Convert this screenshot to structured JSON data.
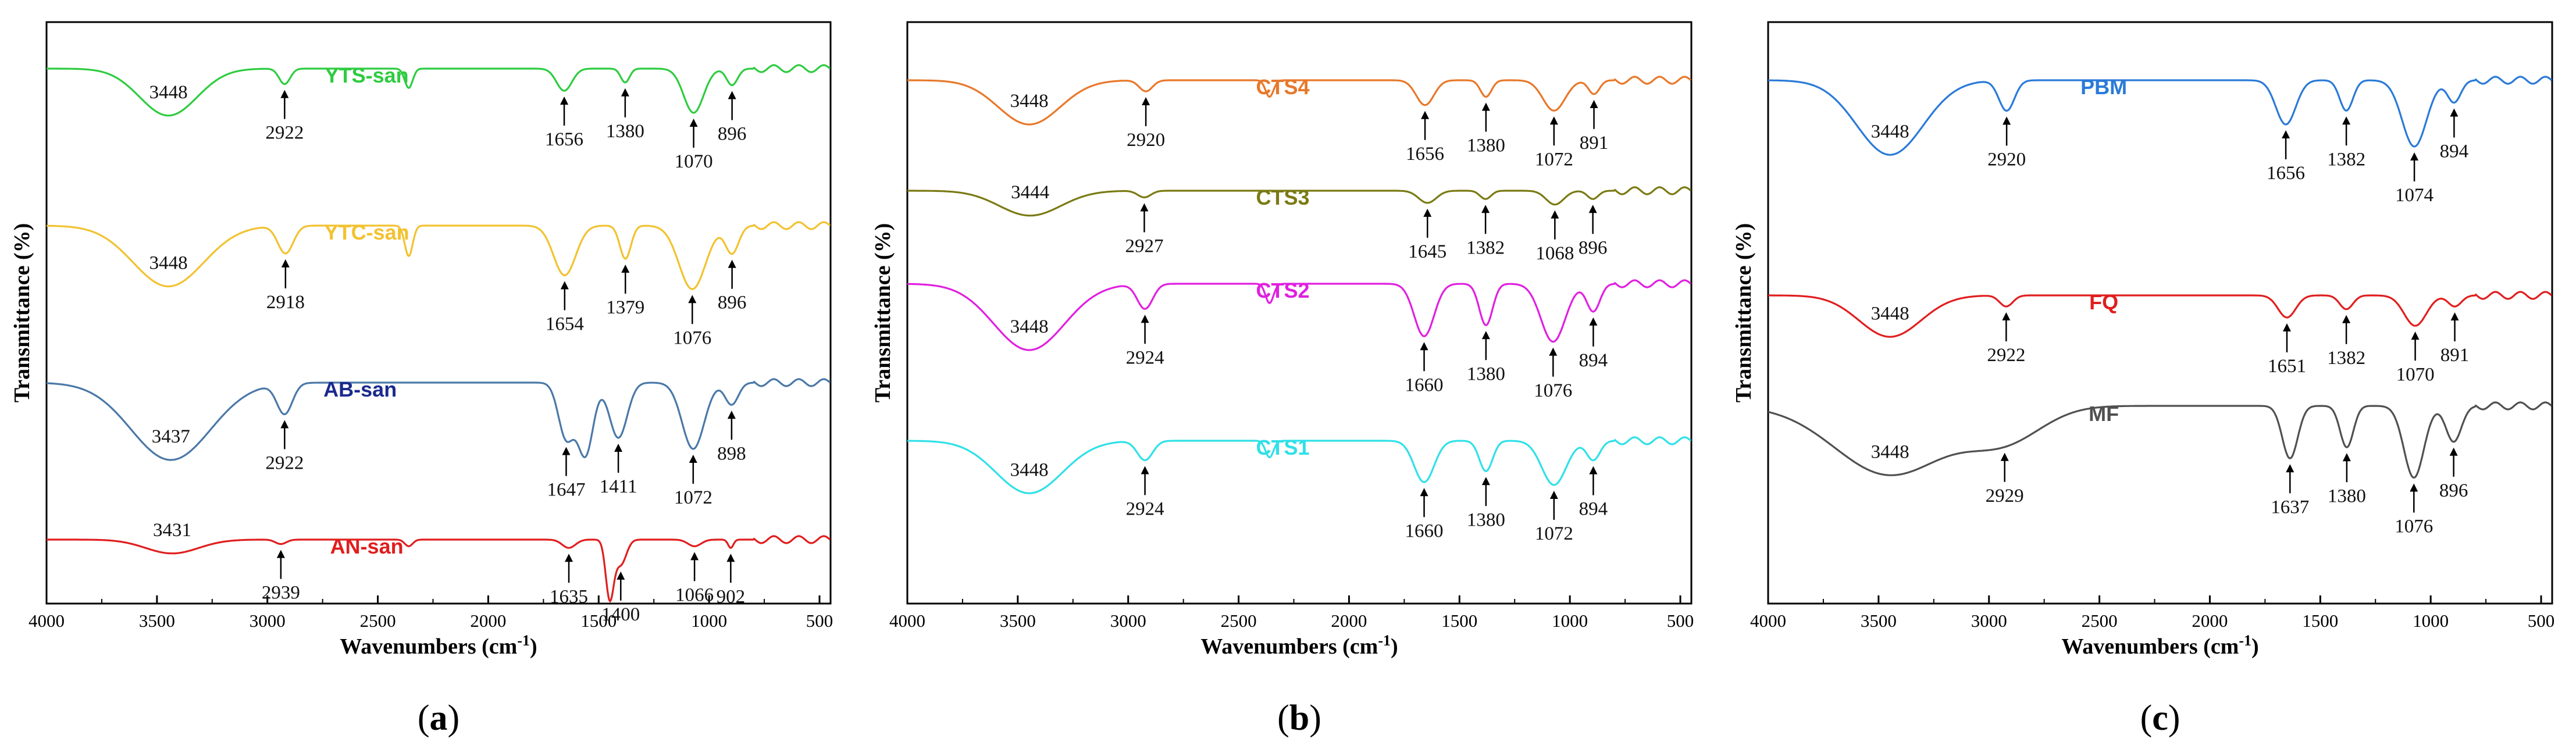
{
  "colors": {
    "green": "#2ecc40",
    "yellow": "#f2c230",
    "steel": "#4a78a8",
    "red": "#e01e1e",
    "navy": "#1a2a8c",
    "orange": "#e8782a",
    "olive": "#7a7a14",
    "magenta": "#e020e0",
    "cyan": "#30e0e8",
    "blue": "#2a7ad8",
    "gray": "#505050"
  },
  "chart_data": [
    {
      "panel": "a",
      "type": "line",
      "caption": {
        "open": "(",
        "letter": "a",
        "close": ")"
      },
      "xlabel": "Wavenumbers (cm",
      "xlabel_sup": "-1",
      "xlabel_close": ")",
      "ylabel": "Transmittance (%)",
      "xlim": [
        4000,
        450
      ],
      "xticks": [
        4000,
        3500,
        3000,
        2500,
        2000,
        1500,
        1000,
        500
      ],
      "series": [
        {
          "name": "YTS-san",
          "color": "green",
          "label_x": 2550,
          "baseline": 0.92,
          "shape": "flat",
          "peaks": [
            [
              3448,
              0.85,
              130,
              true
            ],
            [
              2922,
              0.28,
              25,
              true
            ],
            [
              2360,
              0.35,
              18,
              false
            ],
            [
              1656,
              0.4,
              35,
              true
            ],
            [
              1380,
              0.25,
              20,
              true
            ],
            [
              1070,
              0.8,
              45,
              true
            ],
            [
              896,
              0.3,
              25,
              true
            ]
          ]
        },
        {
          "name": "YTC-san",
          "color": "yellow",
          "label_x": 2550,
          "baseline": 0.65,
          "shape": "flat",
          "peaks": [
            [
              3448,
              1.1,
              160,
              true
            ],
            [
              2918,
              0.5,
              35,
              true
            ],
            [
              2360,
              0.55,
              18,
              false
            ],
            [
              1654,
              0.9,
              50,
              true
            ],
            [
              1379,
              0.6,
              25,
              true
            ],
            [
              1076,
              1.15,
              60,
              true
            ],
            [
              896,
              0.5,
              30,
              true
            ]
          ]
        },
        {
          "name": "AB-san",
          "color": "steel",
          "label_x": 2580,
          "label_color": "navy",
          "baseline": 0.38,
          "shape": "flat",
          "peaks": [
            [
              3437,
              1.4,
              180,
              true
            ],
            [
              2922,
              0.55,
              35,
              true
            ],
            [
              1647,
              1.0,
              35,
              true
            ],
            [
              1560,
              1.3,
              35,
              false
            ],
            [
              1411,
              1.0,
              40,
              true
            ],
            [
              1072,
              1.2,
              50,
              true
            ],
            [
              898,
              0.4,
              30,
              true
            ]
          ]
        },
        {
          "name": "AN-san",
          "color": "red",
          "label_x": 2550,
          "baseline": 0.11,
          "shape": "flat",
          "peaks": [
            [
              3431,
              0.25,
              120,
              true
            ],
            [
              2939,
              0.08,
              25,
              true
            ],
            [
              2360,
              0.12,
              18,
              false
            ],
            [
              1635,
              0.15,
              30,
              true
            ],
            [
              1450,
              1.05,
              18,
              false
            ],
            [
              1400,
              0.45,
              25,
              true
            ],
            [
              1066,
              0.12,
              30,
              true
            ],
            [
              902,
              0.15,
              12,
              true
            ]
          ]
        }
      ],
      "annotations": {
        "YTS-san": [
          "3448",
          "2922",
          "1656",
          "1380",
          "1070",
          "896"
        ],
        "YTC-san": [
          "3448",
          "2918",
          "1654",
          "1379",
          "1076",
          "896"
        ],
        "AB-san": [
          "3437",
          "2922",
          "1647",
          "1411",
          "1072",
          "898"
        ],
        "AN-san": [
          "3431",
          "2939",
          "1635",
          "1400",
          "1066",
          "902"
        ]
      }
    },
    {
      "panel": "b",
      "type": "line",
      "caption": {
        "open": "(",
        "letter": "b",
        "close": ")"
      },
      "xlabel": "Wavenumbers (cm",
      "xlabel_sup": "-1",
      "xlabel_close": ")",
      "ylabel": "Transmittance (%)",
      "xlim": [
        4000,
        450
      ],
      "xticks": [
        4000,
        3500,
        3000,
        2500,
        2000,
        1500,
        1000,
        500
      ],
      "series": [
        {
          "name": "CTS4",
          "color": "orange",
          "label_x": 2300,
          "baseline": 0.9,
          "shape": "flat",
          "peaks": [
            [
              3448,
              0.8,
              140,
              true
            ],
            [
              2920,
              0.2,
              30,
              true
            ],
            [
              2360,
              0.3,
              18,
              false
            ],
            [
              1656,
              0.45,
              40,
              true
            ],
            [
              1380,
              0.3,
              25,
              true
            ],
            [
              1072,
              0.55,
              50,
              true
            ],
            [
              891,
              0.25,
              25,
              true
            ]
          ]
        },
        {
          "name": "CTS3",
          "color": "olive",
          "label_x": 2300,
          "baseline": 0.71,
          "shape": "flat",
          "peaks": [
            [
              3444,
              0.45,
              140,
              true
            ],
            [
              2927,
              0.12,
              30,
              true
            ],
            [
              1645,
              0.22,
              40,
              true
            ],
            [
              1382,
              0.15,
              25,
              true
            ],
            [
              1068,
              0.25,
              40,
              true
            ],
            [
              896,
              0.15,
              25,
              true
            ]
          ]
        },
        {
          "name": "CTS2",
          "color": "magenta",
          "label_x": 2300,
          "baseline": 0.55,
          "shape": "flat",
          "peaks": [
            [
              3448,
              1.2,
              160,
              true
            ],
            [
              2924,
              0.45,
              35,
              true
            ],
            [
              2360,
              0.35,
              18,
              false
            ],
            [
              1660,
              0.95,
              45,
              true
            ],
            [
              1380,
              0.75,
              30,
              true
            ],
            [
              1076,
              1.05,
              55,
              true
            ],
            [
              894,
              0.5,
              30,
              true
            ]
          ]
        },
        {
          "name": "CTS1",
          "color": "cyan",
          "label_x": 2300,
          "baseline": 0.28,
          "shape": "flat",
          "peaks": [
            [
              3448,
              0.95,
              150,
              true
            ],
            [
              2924,
              0.35,
              35,
              true
            ],
            [
              2360,
              0.3,
              18,
              false
            ],
            [
              1660,
              0.75,
              45,
              true
            ],
            [
              1380,
              0.55,
              30,
              true
            ],
            [
              1072,
              0.8,
              55,
              true
            ],
            [
              894,
              0.35,
              30,
              true
            ]
          ]
        }
      ],
      "annotations": {
        "CTS4": [
          "3448",
          "2920",
          "1656",
          "1380",
          "1072",
          "891"
        ],
        "CTS3": [
          "3444",
          "2927",
          "1645",
          "1382",
          "1068",
          "896"
        ],
        "CTS2": [
          "3448",
          "2924",
          "1660",
          "1380",
          "1076",
          "894"
        ],
        "CTS1": [
          "3448",
          "2924",
          "1660",
          "1380",
          "1072",
          "894"
        ]
      }
    },
    {
      "panel": "c",
      "type": "line",
      "caption": {
        "open": "(",
        "letter": "c",
        "close": ")"
      },
      "xlabel": "Wavenumbers (cm",
      "xlabel_sup": "-1",
      "xlabel_close": ")",
      "ylabel": "Transmittance (%)",
      "xlim": [
        4000,
        450
      ],
      "xticks": [
        4000,
        3500,
        3000,
        2500,
        2000,
        1500,
        1000,
        500
      ],
      "series": [
        {
          "name": "PBM",
          "color": "blue",
          "label_x": 2480,
          "baseline": 0.9,
          "shape": "flat",
          "peaks": [
            [
              3448,
              1.35,
              150,
              true
            ],
            [
              2920,
              0.55,
              35,
              true
            ],
            [
              1656,
              0.8,
              45,
              true
            ],
            [
              1382,
              0.55,
              30,
              true
            ],
            [
              1074,
              1.2,
              55,
              true
            ],
            [
              894,
              0.4,
              30,
              true
            ]
          ]
        },
        {
          "name": "FQ",
          "color": "red",
          "label_x": 2480,
          "baseline": 0.53,
          "shape": "flat",
          "peaks": [
            [
              3448,
              0.75,
              140,
              true
            ],
            [
              2922,
              0.2,
              30,
              true
            ],
            [
              1651,
              0.4,
              40,
              true
            ],
            [
              1382,
              0.25,
              30,
              true
            ],
            [
              1070,
              0.55,
              50,
              true
            ],
            [
              891,
              0.2,
              30,
              true
            ]
          ]
        },
        {
          "name": "MF",
          "color": "gray",
          "label_x": 2480,
          "baseline": 0.34,
          "shape": "broad",
          "peaks": [
            [
              3448,
              1.25,
              250,
              true
            ],
            [
              2929,
              0.6,
              170,
              true
            ],
            [
              1637,
              0.95,
              35,
              true
            ],
            [
              1380,
              0.75,
              30,
              true
            ],
            [
              1076,
              1.3,
              45,
              true
            ],
            [
              896,
              0.65,
              35,
              true
            ]
          ]
        }
      ],
      "annotations": {
        "PBM": [
          "3448",
          "2920",
          "1656",
          "1382",
          "1074",
          "894"
        ],
        "FQ": [
          "3448",
          "2922",
          "1651",
          "1382",
          "1070",
          "891"
        ],
        "MF": [
          "3448",
          "2929",
          "1637",
          "1380",
          "1076",
          "896"
        ]
      }
    }
  ]
}
